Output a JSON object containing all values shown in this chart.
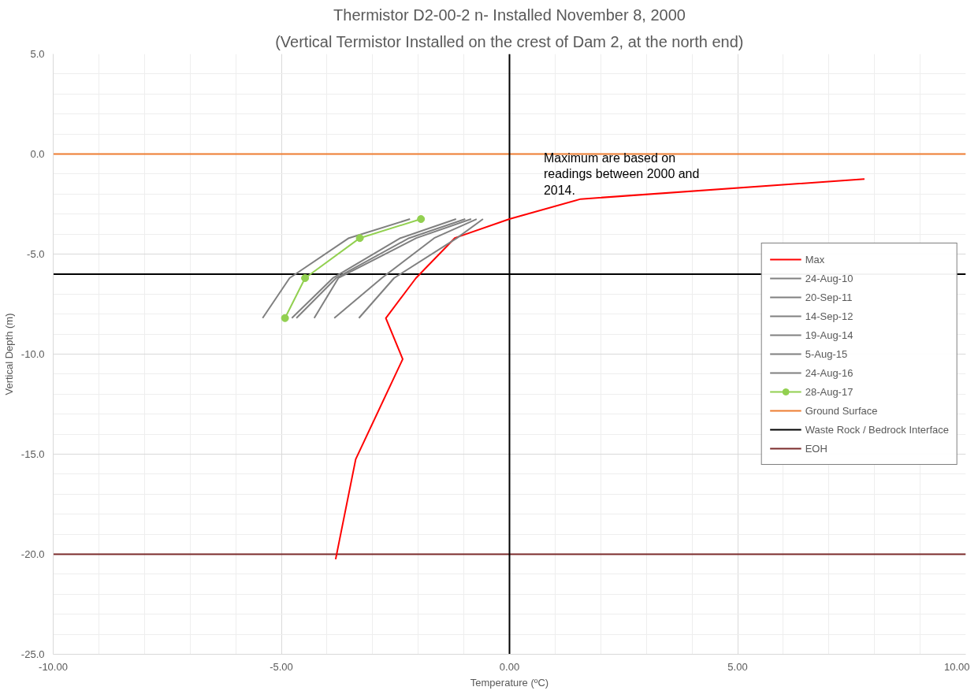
{
  "chart_data": {
    "type": "line",
    "title": "Thermistor D2-00-2 n- Installed November 8, 2000",
    "subtitle": "(Vertical Termistor Installed on the crest of Dam 2, at the north end)",
    "xlabel": "Temperature (ºC)",
    "ylabel": "Vertical Depth (m)",
    "series": [
      {
        "name": "Max",
        "color": "#ff0000",
        "x": [
          7.78,
          1.56,
          0.0,
          -1.2,
          -2.05,
          -2.71,
          -2.34,
          -3.37,
          -3.81
        ],
        "values": [
          -1.25,
          -2.25,
          -3.25,
          -4.2,
          -6.2,
          -8.2,
          -10.25,
          -15.25,
          -20.25
        ]
      },
      {
        "name": "24-Aug-10",
        "color": "#808080",
        "x": [
          -2.18,
          -3.52,
          -4.82,
          -5.41
        ],
        "values": [
          -3.25,
          -4.2,
          -6.2,
          -8.2
        ]
      },
      {
        "name": "20-Sep-11",
        "color": "#808080",
        "x": [
          -1.17,
          -2.39,
          -3.87,
          -4.77
        ],
        "values": [
          -3.25,
          -4.2,
          -6.2,
          -8.2
        ]
      },
      {
        "name": "14-Sep-12",
        "color": "#808080",
        "x": [
          -0.97,
          -2.2,
          -3.8,
          -4.67
        ],
        "values": [
          -3.25,
          -4.2,
          -6.2,
          -8.2
        ]
      },
      {
        "name": "19-Aug-14",
        "color": "#808080",
        "x": [
          -0.84,
          -2.04,
          -3.75,
          -4.28
        ],
        "values": [
          -3.25,
          -4.2,
          -6.2,
          -8.2
        ]
      },
      {
        "name": "5-Aug-15",
        "color": "#808080",
        "x": [
          -0.72,
          -1.65,
          -2.8,
          -3.84
        ],
        "values": [
          -3.25,
          -4.2,
          -6.2,
          -8.2
        ]
      },
      {
        "name": "24-Aug-16",
        "color": "#808080",
        "x": [
          -0.58,
          -1.15,
          -2.53,
          -3.3
        ],
        "values": [
          -3.25,
          -4.2,
          -6.2,
          -8.2
        ]
      },
      {
        "name": "28-Aug-17",
        "color": "#92d050",
        "marker": "circle",
        "x": [
          -1.94,
          -3.28,
          -4.48,
          -4.92
        ],
        "values": [
          -3.25,
          -4.2,
          -6.2,
          -8.2
        ]
      }
    ],
    "ref_lines": [
      {
        "axis": "y",
        "value": 0,
        "label": "Ground Surface",
        "color": "#ed7d31"
      },
      {
        "axis": "y",
        "value": -6,
        "label": "Waste Rock / Bedrock Interface",
        "color": "#000000"
      },
      {
        "axis": "y",
        "value": -20,
        "label": "EOH",
        "color": "#7b2b2b"
      },
      {
        "axis": "x",
        "value": 0,
        "color": "#000000"
      }
    ],
    "annotations": [
      "Maximum are based on readings between  2000 and 2014."
    ],
    "xlim": [
      -10,
      10
    ],
    "xticks": [
      {
        "value": -10,
        "label": "-10.00"
      },
      {
        "value": -5,
        "label": "-5.00"
      },
      {
        "value": 0,
        "label": "0.00"
      },
      {
        "value": 5,
        "label": "5.00"
      },
      {
        "value": 10,
        "label": "10.00"
      }
    ],
    "ylim": [
      -25,
      5
    ],
    "yticks": [
      {
        "value": 5,
        "label": "5.0"
      },
      {
        "value": 0,
        "label": "0.0"
      },
      {
        "value": -5,
        "label": "-5.0"
      },
      {
        "value": -10,
        "label": "-10.0"
      },
      {
        "value": -15,
        "label": "-15.0"
      },
      {
        "value": -20,
        "label": "-20.0"
      },
      {
        "value": -25,
        "label": "-25.0"
      }
    ],
    "grid": true,
    "legend": "right",
    "line_style": "solid"
  }
}
